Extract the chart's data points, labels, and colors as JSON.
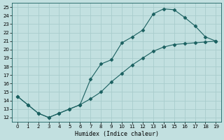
{
  "xlabel": "Humidex (Indice chaleur)",
  "bg_color": "#c2e0e0",
  "grid_color": "#a8cccc",
  "line_color": "#1a6060",
  "xlim": [
    -0.5,
    19.5
  ],
  "ylim": [
    11.5,
    25.5
  ],
  "xticks": [
    0,
    1,
    2,
    3,
    4,
    5,
    6,
    7,
    8,
    9,
    10,
    11,
    12,
    13,
    14,
    15,
    16,
    17,
    18,
    19
  ],
  "yticks": [
    12,
    13,
    14,
    15,
    16,
    17,
    18,
    19,
    20,
    21,
    22,
    23,
    24,
    25
  ],
  "curve1_x": [
    0,
    1,
    2,
    3,
    4,
    5,
    6,
    7,
    8,
    9,
    10,
    11,
    12,
    13,
    14,
    15,
    16,
    17,
    18,
    19
  ],
  "curve1_y": [
    14.5,
    13.5,
    12.5,
    12.0,
    12.5,
    13.0,
    13.5,
    16.5,
    18.3,
    18.8,
    20.8,
    21.5,
    22.3,
    24.2,
    24.8,
    24.7,
    23.8,
    22.8,
    21.5,
    21.0
  ],
  "curve2_x": [
    0,
    1,
    2,
    3,
    4,
    5,
    6,
    7,
    8,
    9,
    10,
    11,
    12,
    13,
    14,
    15,
    16,
    17,
    18,
    19
  ],
  "curve2_y": [
    14.5,
    13.5,
    12.5,
    12.0,
    12.5,
    13.0,
    13.5,
    14.2,
    15.0,
    16.2,
    17.2,
    18.2,
    19.0,
    19.8,
    20.3,
    20.6,
    20.7,
    20.8,
    20.9,
    21.0
  ]
}
